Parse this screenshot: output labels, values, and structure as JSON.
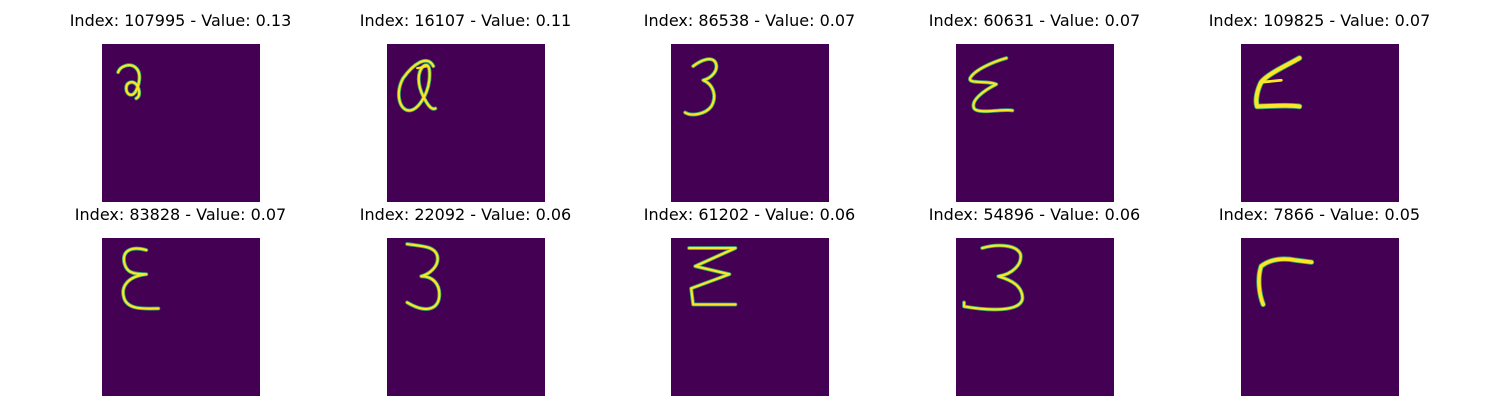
{
  "colors": {
    "background": "#440154",
    "stroke_core": "#fde725",
    "stroke_edge": "#35b779",
    "stroke_mid": "#6ece58"
  },
  "samples": [
    {
      "title": "Index: 107995 - Value: 0.13",
      "glyph": "curl-a"
    },
    {
      "title": "Index: 16107 - Value: 0.11",
      "glyph": "looped-a"
    },
    {
      "title": "Index: 86538 - Value: 0.07",
      "glyph": "three"
    },
    {
      "title": "Index: 60631 - Value: 0.07",
      "glyph": "epsilon-slant"
    },
    {
      "title": "Index: 109825 - Value: 0.07",
      "glyph": "bold-z"
    },
    {
      "title": "Index: 83828 - Value: 0.07",
      "glyph": "epsilon"
    },
    {
      "title": "Index: 22092 - Value: 0.06",
      "glyph": "three-tall"
    },
    {
      "title": "Index: 61202 - Value: 0.06",
      "glyph": "zigzag"
    },
    {
      "title": "Index: 54896 - Value: 0.06",
      "glyph": "three-wide"
    },
    {
      "title": "Index: 7866 - Value: 0.05",
      "glyph": "hook"
    }
  ]
}
